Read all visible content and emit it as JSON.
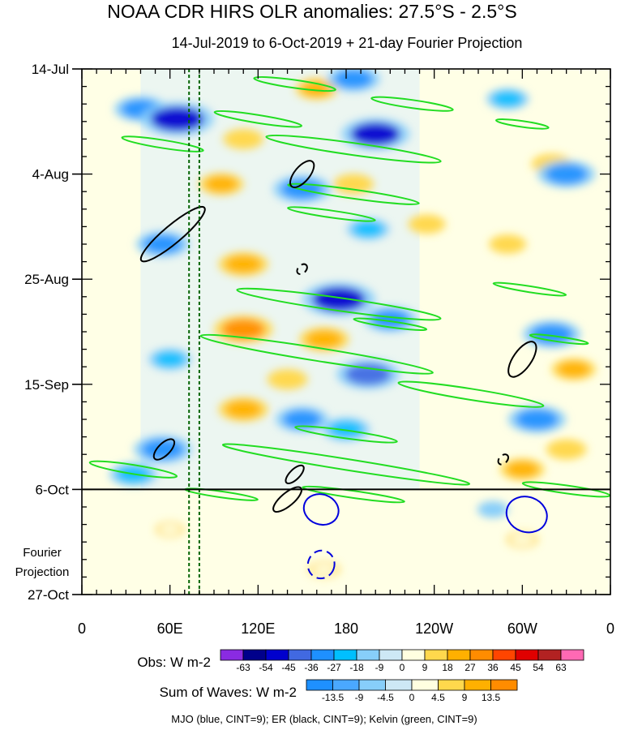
{
  "chart_data": {
    "type": "heatmap",
    "title": "NOAA CDR HIRS OLR anomalies: 27.5°S - 2.5°S",
    "subtitle": "14-Jul-2019 to 6-Oct-2019 + 21-day Fourier Projection",
    "x_axis": {
      "range_deg_east": [
        0,
        360
      ],
      "tick_positions_deg": [
        0,
        60,
        120,
        180,
        240,
        300,
        360
      ],
      "tick_labels": [
        "0",
        "60E",
        "120E",
        "180",
        "120W",
        "60W",
        "0"
      ]
    },
    "y_axis": {
      "direction": "time increasing downward",
      "range": [
        "2019-07-14",
        "2019-10-27"
      ],
      "tick_dates": [
        "2019-07-14",
        "2019-08-04",
        "2019-08-25",
        "2019-09-15",
        "2019-10-06",
        "2019-10-27"
      ],
      "tick_labels": [
        "14-Jul",
        "4-Aug",
        "25-Aug",
        "15-Sep",
        "6-Oct",
        "27-Oct"
      ]
    },
    "projection_label": [
      "Fourier",
      "Projection"
    ],
    "projection_start": "2019-10-06",
    "reference_lines": {
      "horizontal_date": "2019-10-06",
      "vertical_dotted_longitudes_deg": [
        73,
        80
      ]
    },
    "colorbars": [
      {
        "label": "Obs: W m-2",
        "levels": [
          "-63",
          "-54",
          "-45",
          "-36",
          "-27",
          "-18",
          "-9",
          "0",
          "9",
          "18",
          "27",
          "36",
          "45",
          "54",
          "63"
        ],
        "colors": [
          "#8a2be2",
          "#00008b",
          "#0000cd",
          "#4169e1",
          "#1e90ff",
          "#00bfff",
          "#87cefa",
          "#cde8f5",
          "#ffffe0",
          "#ffd84c",
          "#ffb000",
          "#ff8c00",
          "#ff4500",
          "#e00000",
          "#b22222",
          "#ff69b4"
        ]
      },
      {
        "label": "Sum of Waves: W m-2",
        "levels": [
          "-13.5",
          "-9",
          "-4.5",
          "0",
          "4.5",
          "9",
          "13.5"
        ],
        "colors": [
          "#1e90ff",
          "#4aa8ff",
          "#87cefa",
          "#cde8f5",
          "#ffffe0",
          "#ffd84c",
          "#ffb000",
          "#ff8c00"
        ]
      }
    ],
    "footnote": "MJO (blue, CINT=9); ER (black, CINT=9); Kelvin (green, CINT=9)",
    "wave_colors": {
      "mjo": "#0000dd",
      "er": "#000000",
      "kelvin": "#22dd22"
    },
    "anomaly_features": [
      {
        "lon": 40,
        "date": "2019-07-22",
        "value": -30
      },
      {
        "lon": 65,
        "date": "2019-07-24",
        "value": -50
      },
      {
        "lon": 160,
        "date": "2019-07-18",
        "value": 20
      },
      {
        "lon": 110,
        "date": "2019-07-28",
        "value": 18
      },
      {
        "lon": 200,
        "date": "2019-07-27",
        "value": -45
      },
      {
        "lon": 185,
        "date": "2019-07-16",
        "value": -30
      },
      {
        "lon": 290,
        "date": "2019-07-20",
        "value": -20
      },
      {
        "lon": 320,
        "date": "2019-08-02",
        "value": 18
      },
      {
        "lon": 330,
        "date": "2019-08-04",
        "value": -35
      },
      {
        "lon": 95,
        "date": "2019-08-06",
        "value": 22
      },
      {
        "lon": 150,
        "date": "2019-08-07",
        "value": -35
      },
      {
        "lon": 185,
        "date": "2019-08-06",
        "value": 18
      },
      {
        "lon": 55,
        "date": "2019-08-18",
        "value": -30
      },
      {
        "lon": 110,
        "date": "2019-08-22",
        "value": 27
      },
      {
        "lon": 195,
        "date": "2019-08-15",
        "value": -20
      },
      {
        "lon": 235,
        "date": "2019-08-14",
        "value": 15
      },
      {
        "lon": 290,
        "date": "2019-08-18",
        "value": 15
      },
      {
        "lon": 175,
        "date": "2019-08-29",
        "value": -50
      },
      {
        "lon": 210,
        "date": "2019-09-02",
        "value": -30
      },
      {
        "lon": 110,
        "date": "2019-09-04",
        "value": 36
      },
      {
        "lon": 165,
        "date": "2019-09-06",
        "value": 27
      },
      {
        "lon": 320,
        "date": "2019-09-05",
        "value": -35
      },
      {
        "lon": 335,
        "date": "2019-09-12",
        "value": 22
      },
      {
        "lon": 195,
        "date": "2019-09-13",
        "value": -40
      },
      {
        "lon": 140,
        "date": "2019-09-14",
        "value": 18
      },
      {
        "lon": 60,
        "date": "2019-09-10",
        "value": -20
      },
      {
        "lon": 110,
        "date": "2019-09-20",
        "value": 27
      },
      {
        "lon": 150,
        "date": "2019-09-22",
        "value": -30
      },
      {
        "lon": 180,
        "date": "2019-09-24",
        "value": -25
      },
      {
        "lon": 310,
        "date": "2019-09-22",
        "value": -35
      },
      {
        "lon": 55,
        "date": "2019-09-28",
        "value": -35
      },
      {
        "lon": 35,
        "date": "2019-10-03",
        "value": -25
      },
      {
        "lon": 300,
        "date": "2019-10-02",
        "value": 22
      },
      {
        "lon": 330,
        "date": "2019-09-28",
        "value": 18
      },
      {
        "lon": 165,
        "date": "2019-10-22",
        "value": 9
      },
      {
        "lon": 300,
        "date": "2019-10-16",
        "value": 9
      },
      {
        "lon": 280,
        "date": "2019-10-10",
        "value": -9
      },
      {
        "lon": 60,
        "date": "2019-10-14",
        "value": 6
      }
    ],
    "wave_contours": [
      {
        "type": "kelvin",
        "lon": 55,
        "date": "2019-07-29",
        "lon_half_width": 28,
        "day_half_width": 0.8,
        "angle_deg": 9,
        "dashed": false
      },
      {
        "type": "kelvin",
        "lon": 120,
        "date": "2019-07-24",
        "lon_half_width": 30,
        "day_half_width": 0.8,
        "angle_deg": 9,
        "dashed": false
      },
      {
        "type": "kelvin",
        "lon": 185,
        "date": "2019-07-30",
        "lon_half_width": 60,
        "day_half_width": 1.2,
        "angle_deg": 8,
        "dashed": false
      },
      {
        "type": "kelvin",
        "lon": 145,
        "date": "2019-07-17",
        "lon_half_width": 28,
        "day_half_width": 0.8,
        "angle_deg": 8,
        "dashed": false
      },
      {
        "type": "kelvin",
        "lon": 225,
        "date": "2019-07-21",
        "lon_half_width": 28,
        "day_half_width": 0.8,
        "angle_deg": 8,
        "dashed": false
      },
      {
        "type": "kelvin",
        "lon": 300,
        "date": "2019-07-25",
        "lon_half_width": 18,
        "day_half_width": 0.6,
        "angle_deg": 8,
        "dashed": false
      },
      {
        "type": "kelvin",
        "lon": 185,
        "date": "2019-08-08",
        "lon_half_width": 45,
        "day_half_width": 0.9,
        "angle_deg": 8,
        "dashed": false
      },
      {
        "type": "kelvin",
        "lon": 170,
        "date": "2019-08-12",
        "lon_half_width": 30,
        "day_half_width": 0.7,
        "angle_deg": 8,
        "dashed": false
      },
      {
        "type": "kelvin",
        "lon": 175,
        "date": "2019-08-30",
        "lon_half_width": 70,
        "day_half_width": 1.3,
        "angle_deg": 8,
        "dashed": false
      },
      {
        "type": "kelvin",
        "lon": 210,
        "date": "2019-09-03",
        "lon_half_width": 25,
        "day_half_width": 0.6,
        "angle_deg": 8,
        "dashed": false
      },
      {
        "type": "kelvin",
        "lon": 160,
        "date": "2019-09-09",
        "lon_half_width": 80,
        "day_half_width": 1.3,
        "angle_deg": 9,
        "dashed": false
      },
      {
        "type": "kelvin",
        "lon": 305,
        "date": "2019-08-27",
        "lon_half_width": 25,
        "day_half_width": 0.6,
        "angle_deg": 9,
        "dashed": false
      },
      {
        "type": "kelvin",
        "lon": 325,
        "date": "2019-09-06",
        "lon_half_width": 20,
        "day_half_width": 0.5,
        "angle_deg": 8,
        "dashed": false
      },
      {
        "type": "kelvin",
        "lon": 265,
        "date": "2019-09-17",
        "lon_half_width": 50,
        "day_half_width": 1.1,
        "angle_deg": 9,
        "dashed": false
      },
      {
        "type": "kelvin",
        "lon": 180,
        "date": "2019-09-25",
        "lon_half_width": 35,
        "day_half_width": 0.8,
        "angle_deg": 8,
        "dashed": false
      },
      {
        "type": "kelvin",
        "lon": 180,
        "date": "2019-10-01",
        "lon_half_width": 85,
        "day_half_width": 1.1,
        "angle_deg": 9,
        "dashed": false
      },
      {
        "type": "kelvin",
        "lon": 35,
        "date": "2019-10-02",
        "lon_half_width": 30,
        "day_half_width": 0.9,
        "angle_deg": 9,
        "dashed": false
      },
      {
        "type": "kelvin",
        "lon": 95,
        "date": "2019-10-07",
        "lon_half_width": 25,
        "day_half_width": 0.6,
        "angle_deg": 8,
        "dashed": false
      },
      {
        "type": "kelvin",
        "lon": 185,
        "date": "2019-10-07",
        "lon_half_width": 35,
        "day_half_width": 0.7,
        "angle_deg": 8,
        "dashed": false
      },
      {
        "type": "kelvin",
        "lon": 330,
        "date": "2019-10-06",
        "lon_half_width": 30,
        "day_half_width": 0.8,
        "angle_deg": 8,
        "dashed": false
      },
      {
        "type": "er",
        "lon": 62,
        "date": "2019-08-16",
        "lon_half_width": 28,
        "day_half_width": 1.8,
        "angle_deg": -40,
        "dashed": false
      },
      {
        "type": "er",
        "lon": 150,
        "date": "2019-08-04",
        "lon_half_width": 11,
        "day_half_width": 1.5,
        "angle_deg": -50,
        "dashed": false
      },
      {
        "type": "er",
        "lon": 150,
        "date": "2019-08-23",
        "lon_half_width": 4,
        "day_half_width": 0.8,
        "angle_deg": -45,
        "dashed": true
      },
      {
        "type": "er",
        "lon": 300,
        "date": "2019-09-10",
        "lon_half_width": 14,
        "day_half_width": 1.8,
        "angle_deg": -55,
        "dashed": false
      },
      {
        "type": "er",
        "lon": 56,
        "date": "2019-09-28",
        "lon_half_width": 9,
        "day_half_width": 1.2,
        "angle_deg": -45,
        "dashed": false
      },
      {
        "type": "er",
        "lon": 145,
        "date": "2019-10-03",
        "lon_half_width": 8,
        "day_half_width": 1.0,
        "angle_deg": -45,
        "dashed": false
      },
      {
        "type": "er",
        "lon": 287,
        "date": "2019-09-30",
        "lon_half_width": 4,
        "day_half_width": 0.8,
        "angle_deg": -45,
        "dashed": true
      },
      {
        "type": "er",
        "lon": 140,
        "date": "2019-10-08",
        "lon_half_width": 12,
        "day_half_width": 1.3,
        "angle_deg": -40,
        "dashed": false
      },
      {
        "type": "mjo",
        "lon": 163,
        "date": "2019-10-10",
        "lon_half_width": 12,
        "day_half_width": 3.0,
        "angle_deg": 20,
        "dashed": false
      },
      {
        "type": "mjo",
        "lon": 303,
        "date": "2019-10-11",
        "lon_half_width": 14,
        "day_half_width": 3.5,
        "angle_deg": 20,
        "dashed": false
      },
      {
        "type": "mjo",
        "lon": 163,
        "date": "2019-10-21",
        "lon_half_width": 9,
        "day_half_width": 2.8,
        "angle_deg": 20,
        "dashed": true
      }
    ]
  }
}
